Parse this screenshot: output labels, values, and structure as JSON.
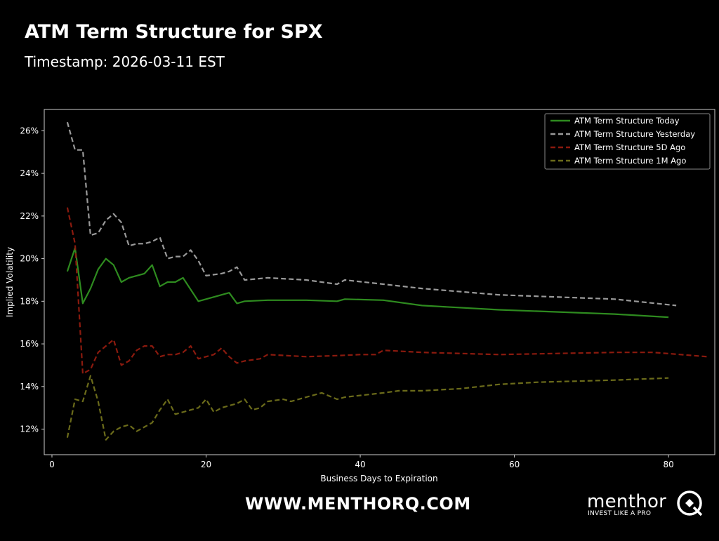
{
  "header": {
    "title": "ATM Term Structure for SPX",
    "subtitle": "Timestamp: 2026-03-11 EST"
  },
  "footer": {
    "website": "WWW.MENTHORQ.COM",
    "brand_name": "menthor",
    "brand_tagline": "INVEST LIKE A PRO",
    "brand_logo_letter": "Q"
  },
  "colors": {
    "background": "#000000",
    "today": "#2e8b1f",
    "yesterday": "#9a9a9a",
    "five_day": "#8b1a0e",
    "one_month": "#6b6b1a"
  },
  "chart_data": {
    "type": "line",
    "xlabel": "Business Days to Expiration",
    "ylabel": "Implied Volatility",
    "xlim": [
      -1,
      86
    ],
    "ylim": [
      0.108,
      0.27
    ],
    "xticks": [
      0,
      20,
      40,
      60,
      80
    ],
    "yticks": [
      0.12,
      0.14,
      0.16,
      0.18,
      0.2,
      0.22,
      0.24,
      0.26
    ],
    "ytick_labels": [
      "12%",
      "14%",
      "16%",
      "18%",
      "20%",
      "22%",
      "24%",
      "26%"
    ],
    "grid": false,
    "legend_position": "top-right",
    "series": [
      {
        "name": "ATM Term Structure Today",
        "style": "solid",
        "color": "#2e8b1f",
        "x": [
          2,
          3,
          4,
          5,
          6,
          7,
          8,
          9,
          10,
          11,
          12,
          13,
          14,
          15,
          16,
          17,
          19,
          20,
          22,
          23,
          24,
          25,
          28,
          33,
          37,
          38,
          43,
          48,
          58,
          73,
          80
        ],
        "y": [
          0.194,
          0.205,
          0.179,
          0.186,
          0.195,
          0.2,
          0.197,
          0.189,
          0.191,
          0.192,
          0.193,
          0.197,
          0.187,
          0.189,
          0.189,
          0.191,
          0.18,
          0.181,
          0.183,
          0.184,
          0.179,
          0.18,
          0.1805,
          0.1805,
          0.18,
          0.181,
          0.1805,
          0.178,
          0.176,
          0.174,
          0.1725
        ]
      },
      {
        "name": "ATM Term Structure Yesterday",
        "style": "dashed",
        "color": "#9a9a9a",
        "x": [
          2,
          3,
          4,
          5,
          6,
          7,
          8,
          9,
          10,
          11,
          12,
          13,
          14,
          15,
          16,
          17,
          18,
          19,
          20,
          22,
          23,
          24,
          25,
          28,
          33,
          37,
          38,
          43,
          48,
          58,
          73,
          81
        ],
        "y": [
          0.264,
          0.251,
          0.251,
          0.211,
          0.212,
          0.218,
          0.221,
          0.217,
          0.206,
          0.207,
          0.207,
          0.208,
          0.21,
          0.2,
          0.201,
          0.201,
          0.204,
          0.199,
          0.192,
          0.193,
          0.194,
          0.196,
          0.19,
          0.191,
          0.19,
          0.188,
          0.19,
          0.188,
          0.186,
          0.183,
          0.181,
          0.178
        ]
      },
      {
        "name": "ATM Term Structure 5D Ago",
        "style": "dashed",
        "color": "#8b1a0e",
        "x": [
          2,
          3,
          4,
          5,
          6,
          7,
          8,
          9,
          10,
          11,
          12,
          13,
          14,
          15,
          16,
          17,
          18,
          19,
          20,
          21,
          22,
          23,
          24,
          25,
          27,
          28,
          33,
          37,
          40,
          42,
          43,
          48,
          58,
          73,
          78,
          85
        ],
        "y": [
          0.224,
          0.207,
          0.146,
          0.148,
          0.156,
          0.159,
          0.162,
          0.15,
          0.152,
          0.157,
          0.159,
          0.159,
          0.154,
          0.155,
          0.155,
          0.156,
          0.159,
          0.153,
          0.154,
          0.155,
          0.158,
          0.154,
          0.151,
          0.152,
          0.153,
          0.155,
          0.154,
          0.1545,
          0.155,
          0.155,
          0.157,
          0.156,
          0.155,
          0.156,
          0.156,
          0.154
        ]
      },
      {
        "name": "ATM Term Structure 1M Ago",
        "style": "dashed",
        "color": "#6b6b1a",
        "x": [
          2,
          3,
          4,
          5,
          6,
          7,
          8,
          9,
          10,
          11,
          12,
          13,
          14,
          15,
          16,
          17,
          18,
          19,
          20,
          21,
          22,
          23,
          24,
          25,
          26,
          27,
          28,
          30,
          31,
          33,
          35,
          37,
          38,
          43,
          45,
          48,
          53,
          58,
          63,
          73,
          80
        ],
        "y": [
          0.116,
          0.134,
          0.133,
          0.145,
          0.133,
          0.115,
          0.119,
          0.121,
          0.122,
          0.119,
          0.121,
          0.123,
          0.129,
          0.134,
          0.127,
          0.128,
          0.129,
          0.13,
          0.134,
          0.128,
          0.13,
          0.131,
          0.132,
          0.134,
          0.129,
          0.13,
          0.133,
          0.134,
          0.133,
          0.135,
          0.137,
          0.134,
          0.135,
          0.137,
          0.138,
          0.138,
          0.139,
          0.141,
          0.142,
          0.143,
          0.144
        ]
      }
    ]
  }
}
